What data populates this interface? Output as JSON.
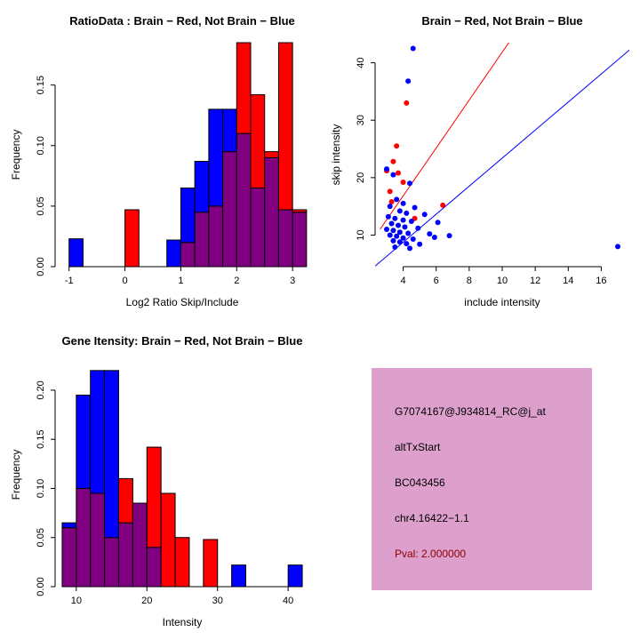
{
  "colors": {
    "red": "#ff0000",
    "blue": "#0000ff",
    "overlap": "#800080",
    "pval": "#8b0000",
    "info_bg": "#dda0cd",
    "axis": "#000000"
  },
  "chart_data": [
    {
      "id": "ratio-hist",
      "type": "bar",
      "variant": "overlaid-histogram",
      "title": "RatioData : Brain − Red, Not Brain − Blue",
      "xlabel": "Log2 Ratio Skip/Include",
      "ylabel": "Frequency",
      "bin_start": -1,
      "bin_width": 0.25,
      "xlim": [
        -1.25,
        3.3
      ],
      "ylim": [
        0,
        0.185
      ],
      "xticks": [
        -1,
        0,
        1,
        2,
        3
      ],
      "xtick_labels": [
        "-1",
        "0",
        "1",
        "2",
        "3"
      ],
      "yticks": [
        0,
        0.05,
        0.1,
        0.15
      ],
      "ytick_labels": [
        "0.00",
        "0.05",
        "0.10",
        "0.15"
      ],
      "grid": false,
      "series": [
        {
          "name": "Brain",
          "color_key": "red",
          "values": [
            0,
            0,
            0,
            0,
            0.047,
            0,
            0,
            0,
            0.02,
            0.045,
            0.05,
            0.095,
            0.185,
            0.142,
            0.095,
            0.185,
            0.047
          ]
        },
        {
          "name": "Not Brain",
          "color_key": "blue",
          "values": [
            0.023,
            0,
            0,
            0,
            0,
            0,
            0,
            0.022,
            0.065,
            0.087,
            0.13,
            0.13,
            0.11,
            0.065,
            0.09,
            0.047,
            0.045
          ]
        }
      ]
    },
    {
      "id": "intensity-scatter",
      "type": "scatter",
      "title": "Brain − Red, Not Brain − Blue",
      "xlabel": "include intensity",
      "ylabel": "skip intensity",
      "xlim": [
        2.3,
        17.7
      ],
      "ylim": [
        4.5,
        43.5
      ],
      "xticks": [
        4,
        6,
        8,
        10,
        12,
        14,
        16
      ],
      "xtick_labels": [
        "4",
        "6",
        "8",
        "10",
        "12",
        "14",
        "16"
      ],
      "yticks": [
        10,
        20,
        30,
        40
      ],
      "ytick_labels": [
        "10",
        "20",
        "30",
        "40"
      ],
      "grid": false,
      "series": [
        {
          "name": "Brain",
          "color_key": "red",
          "line": [
            [
              2.6,
              11.0
            ],
            [
              10.4,
              43.5
            ]
          ],
          "points": [
            [
              4.2,
              33
            ],
            [
              3.6,
              25.5
            ],
            [
              3.4,
              22.8
            ],
            [
              3.0,
              21.2
            ],
            [
              3.7,
              20.8
            ],
            [
              4.0,
              19.2
            ],
            [
              3.2,
              17.6
            ],
            [
              3.3,
              15.8
            ],
            [
              6.4,
              15.2
            ],
            [
              4.7,
              12.9
            ]
          ]
        },
        {
          "name": "Not Brain",
          "color_key": "blue",
          "line": [
            [
              2.3,
              4.6
            ],
            [
              17.7,
              42.2
            ]
          ],
          "points": [
            [
              4.6,
              42.5
            ],
            [
              4.3,
              36.8
            ],
            [
              3.0,
              21.5
            ],
            [
              3.4,
              20.5
            ],
            [
              4.4,
              19.0
            ],
            [
              3.6,
              16.2
            ],
            [
              4.0,
              15.5
            ],
            [
              3.2,
              15.0
            ],
            [
              4.7,
              14.8
            ],
            [
              3.8,
              14.2
            ],
            [
              4.2,
              13.8
            ],
            [
              5.3,
              13.6
            ],
            [
              3.1,
              13.2
            ],
            [
              3.5,
              12.9
            ],
            [
              4.0,
              12.6
            ],
            [
              4.5,
              12.4
            ],
            [
              6.1,
              12.2
            ],
            [
              3.3,
              12.0
            ],
            [
              3.7,
              11.7
            ],
            [
              4.1,
              11.4
            ],
            [
              4.9,
              11.2
            ],
            [
              3.0,
              11.0
            ],
            [
              3.4,
              10.8
            ],
            [
              3.8,
              10.5
            ],
            [
              4.3,
              10.3
            ],
            [
              5.6,
              10.2
            ],
            [
              3.2,
              10.0
            ],
            [
              3.6,
              9.8
            ],
            [
              4.0,
              9.5
            ],
            [
              4.6,
              9.3
            ],
            [
              5.9,
              9.6
            ],
            [
              3.4,
              9.0
            ],
            [
              3.8,
              8.8
            ],
            [
              4.2,
              8.5
            ],
            [
              5.0,
              8.4
            ],
            [
              6.8,
              9.9
            ],
            [
              3.5,
              7.9
            ],
            [
              4.4,
              7.7
            ],
            [
              17.0,
              8.0
            ]
          ]
        }
      ]
    },
    {
      "id": "gene-hist",
      "type": "bar",
      "variant": "overlaid-histogram",
      "title": "Gene Itensity: Brain − Red, Not Brain − Blue",
      "xlabel": "Intensity",
      "ylabel": "Frequency",
      "bin_start": 8,
      "bin_width": 2,
      "xlim": [
        7,
        43
      ],
      "ylim": [
        0,
        0.228
      ],
      "xticks": [
        10,
        20,
        30,
        40
      ],
      "xtick_labels": [
        "10",
        "20",
        "30",
        "40"
      ],
      "yticks": [
        0,
        0.05,
        0.1,
        0.15,
        0.2
      ],
      "ytick_labels": [
        "0.00",
        "0.05",
        "0.10",
        "0.15",
        "0.20"
      ],
      "grid": false,
      "series": [
        {
          "name": "Brain",
          "color_key": "red",
          "values": [
            0.06,
            0.1,
            0.095,
            0.05,
            0.11,
            0.085,
            0.142,
            0.095,
            0.05,
            0,
            0.048,
            0,
            0,
            0,
            0,
            0,
            0
          ]
        },
        {
          "name": "Not Brain",
          "color_key": "blue",
          "values": [
            0.065,
            0.195,
            0.22,
            0.22,
            0.065,
            0.085,
            0.04,
            0,
            0,
            0,
            0,
            0,
            0.022,
            0,
            0,
            0,
            0.022
          ]
        }
      ]
    }
  ],
  "info_box": {
    "lines": [
      "G7074167@J934814_RC@j_at",
      "altTxStart",
      "BC043456",
      "chr4.16422−1.1"
    ],
    "pval_line": "Pval: 2.000000"
  }
}
